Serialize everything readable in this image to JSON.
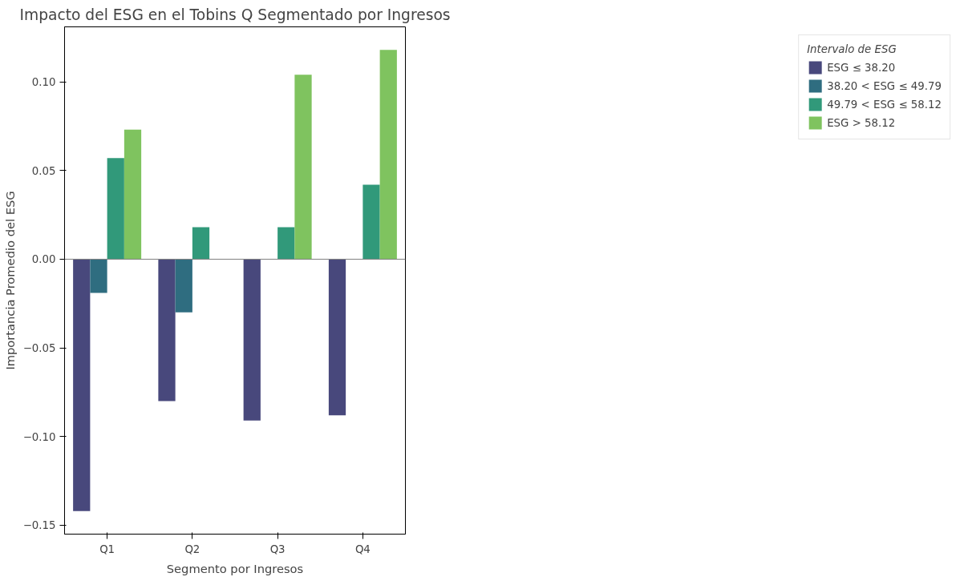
{
  "chart_data": {
    "type": "bar",
    "title": "Impacto del ESG en el Tobins Q Segmentado por Ingresos",
    "xlabel": "Segmento por Ingresos",
    "ylabel": "Importancia Promedio del ESG",
    "legend_title": "Intervalo de ESG",
    "categories": [
      "Q1",
      "Q2",
      "Q3",
      "Q4"
    ],
    "series": [
      {
        "name": "ESG ≤ 38.20",
        "color": "#48487c",
        "values": [
          -0.142,
          -0.08,
          -0.091,
          -0.088
        ]
      },
      {
        "name": "38.20 < ESG ≤ 49.79",
        "color": "#2f6d80",
        "values": [
          -0.019,
          -0.03,
          null,
          null
        ]
      },
      {
        "name": "49.79 < ESG ≤ 58.12",
        "color": "#31997a",
        "values": [
          0.057,
          0.018,
          0.018,
          0.042
        ]
      },
      {
        "name": "ESG > 58.12",
        "color": "#7fc35f",
        "values": [
          0.073,
          null,
          0.104,
          0.118
        ]
      }
    ],
    "ylim": [
      -0.155,
      0.131
    ],
    "yticks": [
      {
        "value": -0.15,
        "label": "−0.15"
      },
      {
        "value": -0.1,
        "label": "−0.10"
      },
      {
        "value": -0.05,
        "label": "−0.05"
      },
      {
        "value": 0,
        "label": "0.00"
      },
      {
        "value": 0.05,
        "label": "0.05"
      },
      {
        "value": 0.1,
        "label": "0.10"
      }
    ],
    "ref_lines": [
      {
        "axis": "y",
        "value": 0,
        "color": "#808080"
      }
    ],
    "legend": "right",
    "grid": false
  }
}
